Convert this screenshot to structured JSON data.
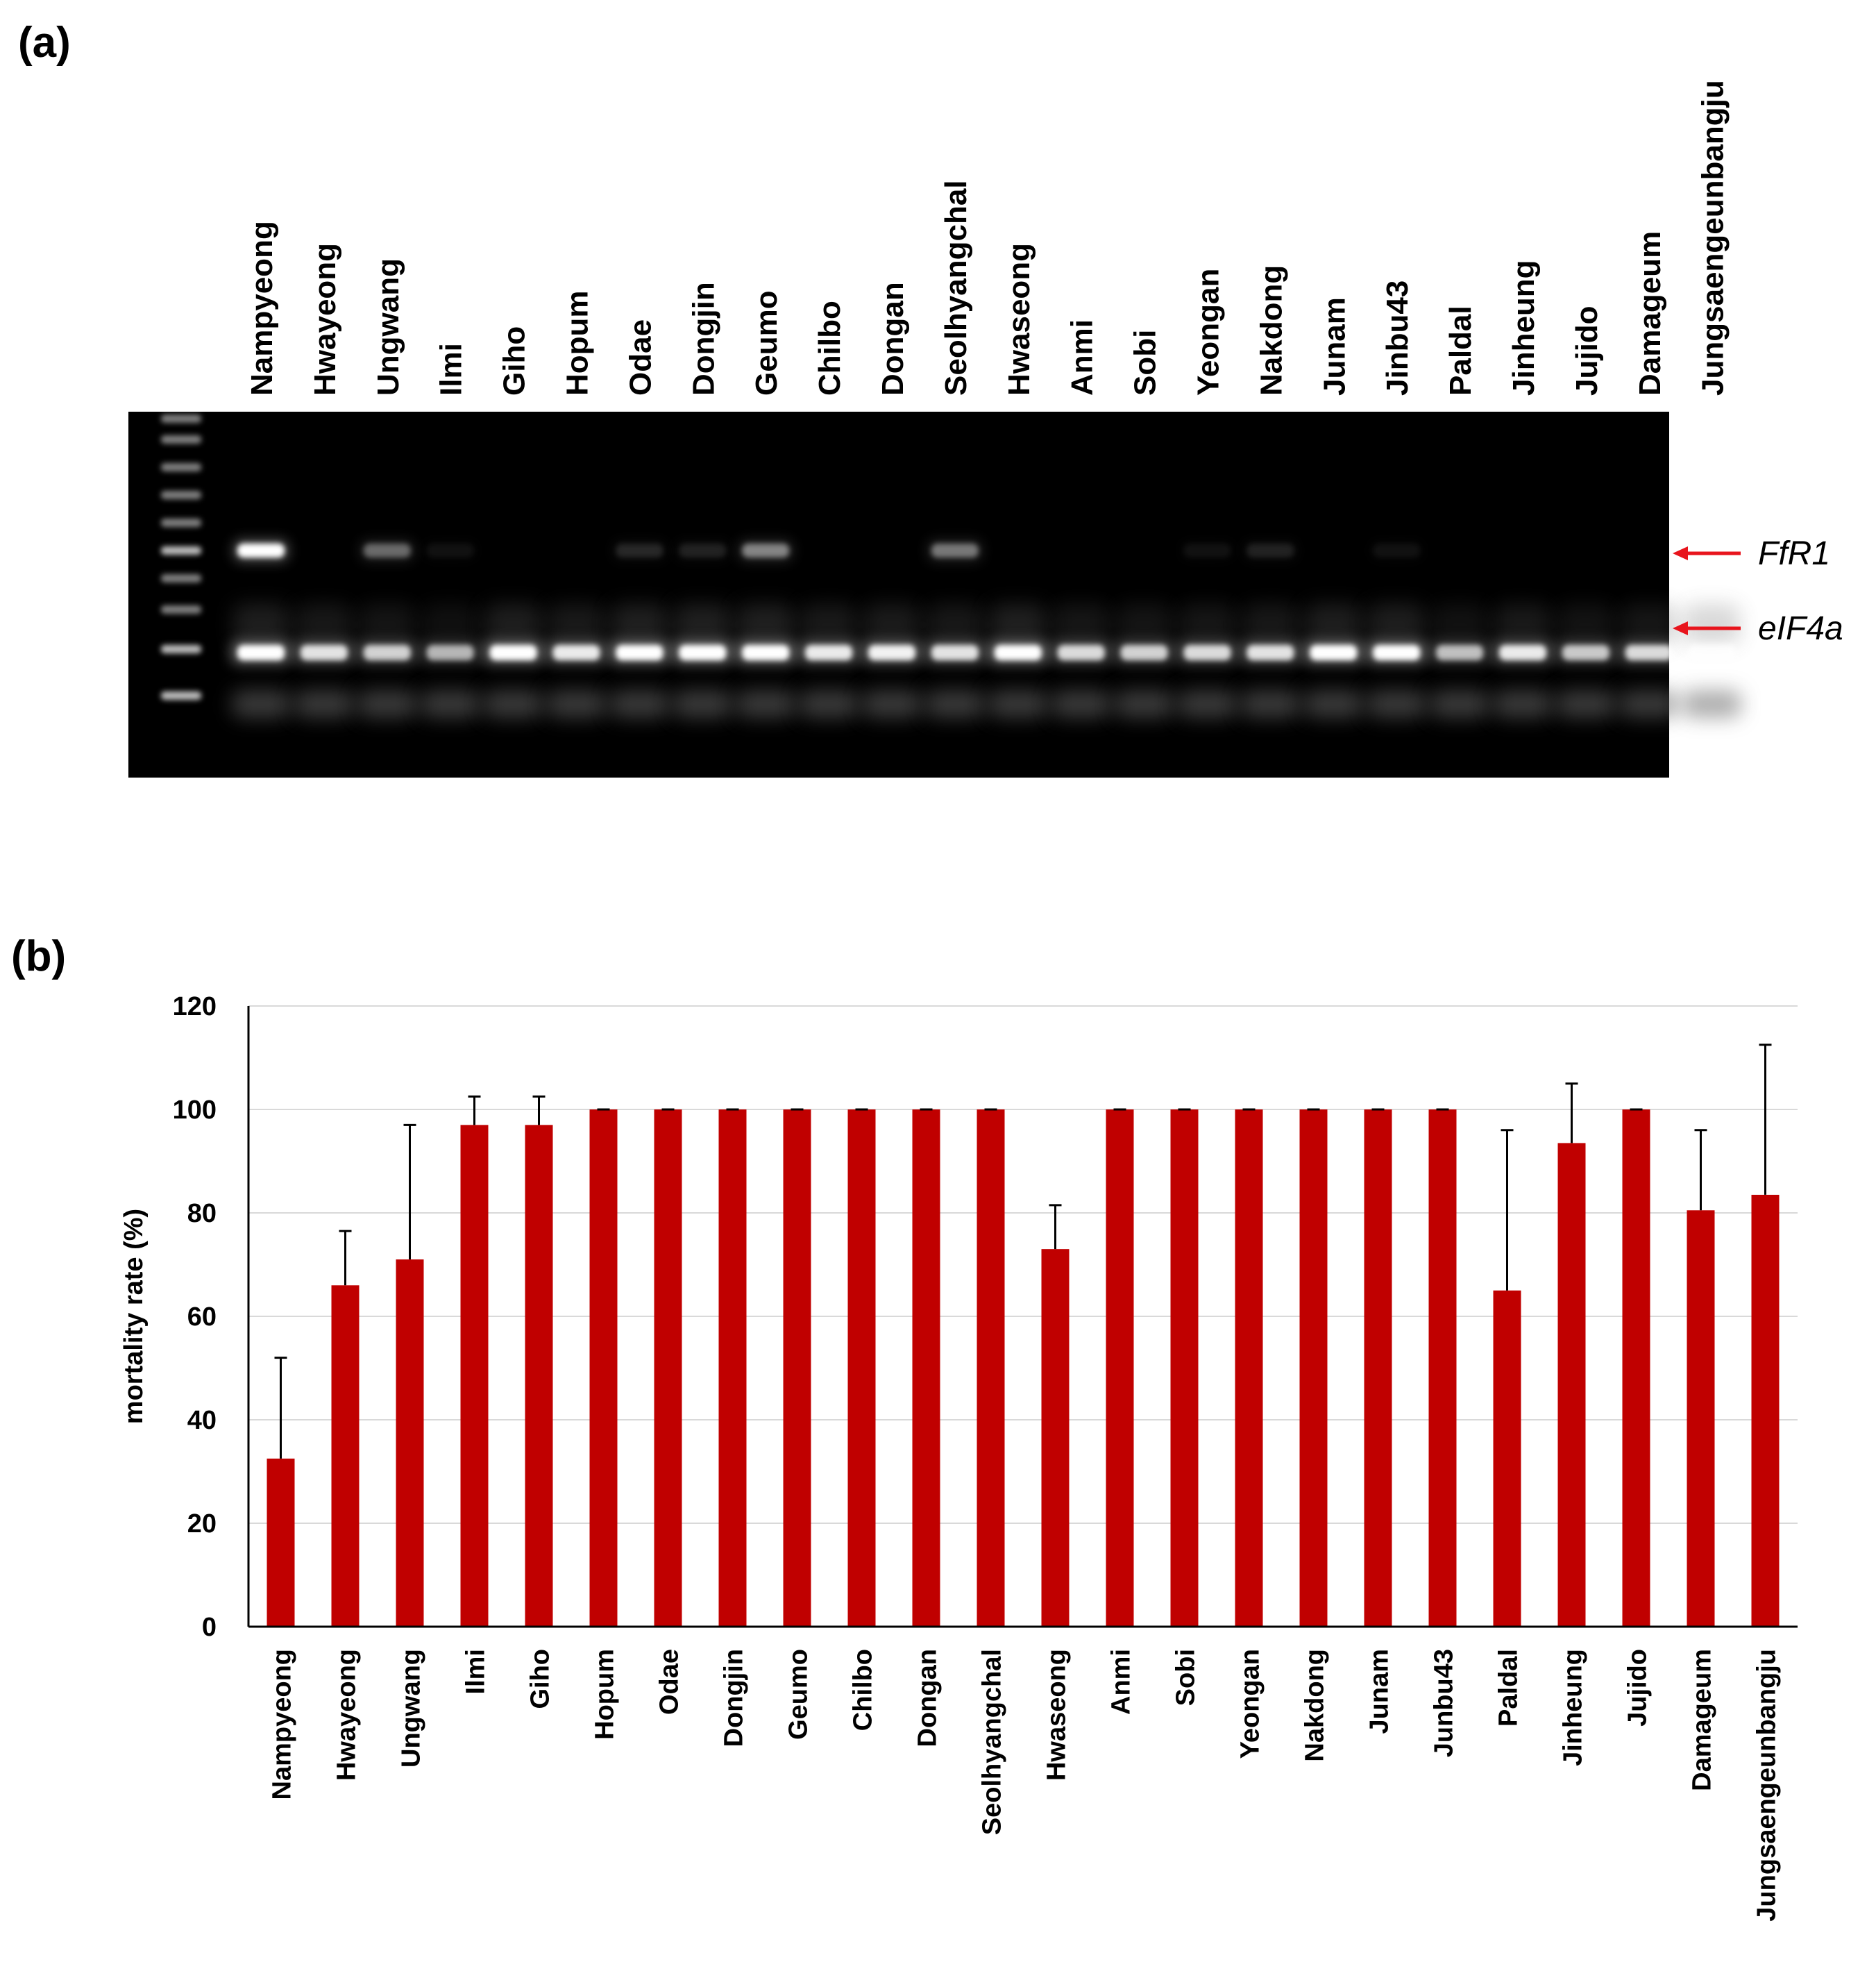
{
  "panel_a": {
    "label": "(a)",
    "lanes": [
      "Nampyeong",
      "Hwayeong",
      "Ungwang",
      "Ilmi",
      "Giho",
      "Hopum",
      "Odae",
      "Dongjin",
      "Geumo",
      "Chilbo",
      "Dongan",
      "Seolhyangchal",
      "Hwaseong",
      "Anmi",
      "Sobi",
      "Yeongan",
      "Nakdong",
      "Junam",
      "Jinbu43",
      "Paldal",
      "Jinheung",
      "Jujido",
      "Damageum",
      "Jungsaengeunbangju"
    ],
    "markers": [
      {
        "gene": "FfR1",
        "arrow_color": "#e8141c"
      },
      {
        "gene": "eIF4a",
        "arrow_color": "#e8141c"
      }
    ],
    "ffr1_intensity": [
      1.0,
      0,
      0.35,
      0.05,
      0,
      0,
      0.12,
      0.1,
      0.45,
      0,
      0,
      0.4,
      0,
      0,
      0,
      0.05,
      0.1,
      0,
      0.05,
      0,
      0,
      0,
      0,
      0
    ],
    "eif4a_intensity": [
      0.95,
      0.75,
      0.65,
      0.5,
      0.95,
      0.8,
      1.0,
      1.0,
      1.0,
      0.8,
      0.85,
      0.75,
      1.0,
      0.7,
      0.65,
      0.7,
      0.75,
      0.95,
      0.95,
      0.55,
      0.8,
      0.6,
      0.7,
      0.65
    ],
    "gel_background": "#000000",
    "band_color": "#ffffff"
  },
  "panel_b": {
    "label": "(b)",
    "chart_data": {
      "type": "bar",
      "title": "",
      "xlabel": "",
      "ylabel": "mortality rate (%)",
      "ylim": [
        0,
        120
      ],
      "yticks": [
        0,
        20,
        40,
        60,
        80,
        100,
        120
      ],
      "grid": true,
      "bar_color": "#c00000",
      "categories": [
        "Nampyeong",
        "Hwayeong",
        "Ungwang",
        "Ilmi",
        "Giho",
        "Hopum",
        "Odae",
        "Dongjin",
        "Geumo",
        "Chilbo",
        "Dongan",
        "Seolhyangchal",
        "Hwaseong",
        "Anmi",
        "Sobi",
        "Yeongan",
        "Nakdong",
        "Junam",
        "Junbu43",
        "Paldal",
        "Jinheung",
        "Jujido",
        "Damageum",
        "Jungsaengeunbangju"
      ],
      "values": [
        32.5,
        66,
        71,
        97,
        97,
        100,
        100,
        100,
        100,
        100,
        100,
        100,
        73,
        100,
        100,
        100,
        100,
        100,
        100,
        65,
        93.5,
        100,
        80.5,
        83.5
      ],
      "error_upper": [
        19.5,
        10.5,
        26,
        5.5,
        5.5,
        0,
        0,
        0,
        0,
        0,
        0,
        0,
        8.5,
        0,
        0,
        0,
        0,
        0,
        0,
        31,
        11.5,
        0,
        15.5,
        29
      ]
    }
  }
}
